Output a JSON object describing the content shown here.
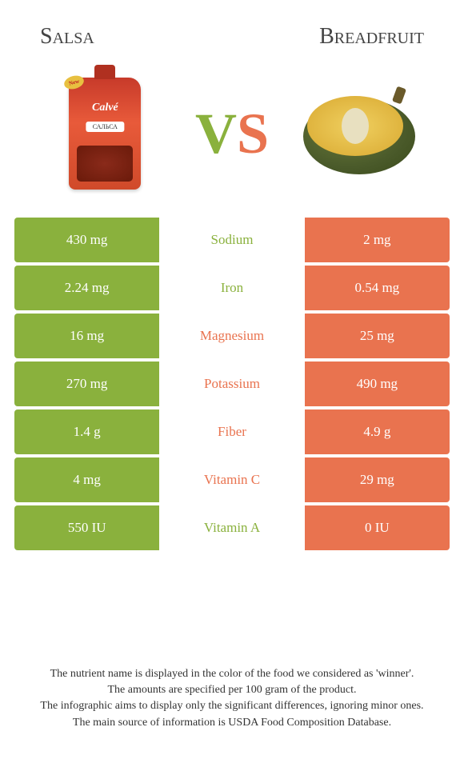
{
  "colors": {
    "left": "#8ab13d",
    "right": "#e9734f"
  },
  "titles": {
    "left": "Salsa",
    "right": "Breadfruit"
  },
  "vs": {
    "v": "V",
    "s": "S"
  },
  "nutrients": [
    {
      "name": "Sodium",
      "left": "430 mg",
      "right": "2 mg",
      "winner": "left"
    },
    {
      "name": "Iron",
      "left": "2.24 mg",
      "right": "0.54 mg",
      "winner": "left"
    },
    {
      "name": "Magnesium",
      "left": "16 mg",
      "right": "25 mg",
      "winner": "right"
    },
    {
      "name": "Potassium",
      "left": "270 mg",
      "right": "490 mg",
      "winner": "right"
    },
    {
      "name": "Fiber",
      "left": "1.4 g",
      "right": "4.9 g",
      "winner": "right"
    },
    {
      "name": "Vitamin C",
      "left": "4 mg",
      "right": "29 mg",
      "winner": "right"
    },
    {
      "name": "Vitamin A",
      "left": "550 IU",
      "right": "0 IU",
      "winner": "left"
    }
  ],
  "footer": {
    "l1": "The nutrient name is displayed in the color of the food we considered as 'winner'.",
    "l2": "The amounts are specified per 100 gram of the product.",
    "l3": "The infographic aims to display only the significant differences, ignoring minor ones.",
    "l4": "The main source of information is USDA Food Composition Database."
  }
}
